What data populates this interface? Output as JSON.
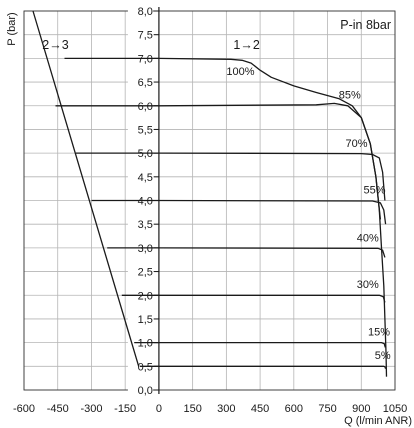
{
  "chart_data": {
    "type": "line",
    "annotation_top_right": "P-in 8bar",
    "xlabel": "Q (l/min ANR)",
    "ylabel": "P (bar)",
    "xlim": [
      -600,
      1050
    ],
    "ylim": [
      0,
      8
    ],
    "grid": true,
    "x_ticks": [
      -600,
      -450,
      -300,
      -150,
      0,
      150,
      300,
      450,
      600,
      750,
      900,
      1050
    ],
    "x_tick_labels": [
      "-600",
      "-450",
      "-300",
      "-150",
      "0",
      "150",
      "300",
      "450",
      "600",
      "750",
      "900",
      "1050"
    ],
    "y_ticks": [
      0,
      0.5,
      1,
      1.5,
      2,
      2.5,
      3,
      3.5,
      4,
      4.5,
      5,
      5.5,
      6,
      6.5,
      7,
      7.5,
      8
    ],
    "y_tick_labels": [
      "0,0",
      "0,5",
      "1,0",
      "1,5",
      "2,0",
      "2,5",
      "3,0",
      "3,5",
      "4,0",
      "4,5",
      "5,0",
      "5,5",
      "6,0",
      "6,5",
      "7,0",
      "7,5",
      "8,0"
    ],
    "region_labels": [
      {
        "text": "1→2",
        "x": 390,
        "y": 7.2
      },
      {
        "text": "2→3",
        "x": -460,
        "y": 7.2
      }
    ],
    "setting_line": {
      "name": "",
      "points": [
        [
          -560,
          8.0
        ],
        [
          -90,
          0.5
        ]
      ]
    },
    "series": [
      {
        "name": "100%",
        "label_at": [
          300,
          6.65
        ],
        "points": [
          [
            -420,
            7.0
          ],
          [
            0,
            7.0
          ],
          [
            320,
            6.98
          ],
          [
            370,
            6.96
          ],
          [
            410,
            6.9
          ],
          [
            450,
            6.75
          ],
          [
            500,
            6.6
          ],
          [
            600,
            6.42
          ],
          [
            700,
            6.28
          ],
          [
            800,
            6.15
          ],
          [
            860,
            6.0
          ],
          [
            900,
            5.75
          ],
          [
            940,
            5.2
          ],
          [
            965,
            4.5
          ],
          [
            980,
            3.8
          ],
          [
            990,
            3.0
          ],
          [
            1000,
            2.2
          ],
          [
            1005,
            1.5
          ],
          [
            1010,
            0.8
          ],
          [
            1012,
            0.28
          ]
        ]
      },
      {
        "name": "85%",
        "label_at": [
          800,
          6.15
        ],
        "points": [
          [
            -460,
            6.0
          ],
          [
            0,
            6.0
          ],
          [
            700,
            6.02
          ],
          [
            780,
            6.05
          ],
          [
            840,
            6.0
          ],
          [
            900,
            5.75
          ],
          [
            940,
            5.2
          ],
          [
            965,
            4.5
          ],
          [
            985,
            3.6
          ]
        ]
      },
      {
        "name": "70%",
        "label_at": [
          830,
          5.13
        ],
        "points": [
          [
            -370,
            5.0
          ],
          [
            0,
            5.0
          ],
          [
            900,
            4.99
          ],
          [
            950,
            4.97
          ],
          [
            980,
            4.9
          ],
          [
            995,
            4.6
          ],
          [
            1005,
            4.0
          ]
        ]
      },
      {
        "name": "55%",
        "label_at": [
          910,
          4.15
        ],
        "points": [
          [
            -300,
            4.0
          ],
          [
            0,
            4.0
          ],
          [
            950,
            3.99
          ],
          [
            985,
            3.95
          ],
          [
            1000,
            3.8
          ],
          [
            1008,
            3.5
          ]
        ]
      },
      {
        "name": "40%",
        "label_at": [
          880,
          3.13
        ],
        "points": [
          [
            -230,
            3.0
          ],
          [
            0,
            3.0
          ],
          [
            975,
            2.99
          ],
          [
            995,
            2.95
          ],
          [
            1005,
            2.8
          ]
        ]
      },
      {
        "name": "30%",
        "label_at": [
          880,
          2.15
        ],
        "points": [
          [
            -165,
            2.0
          ],
          [
            0,
            2.0
          ],
          [
            980,
            2.0
          ],
          [
            998,
            1.97
          ],
          [
            1005,
            1.85
          ]
        ]
      },
      {
        "name": "15%",
        "label_at": [
          930,
          1.15
        ],
        "points": [
          [
            -110,
            1.0
          ],
          [
            0,
            1.0
          ],
          [
            990,
            1.0
          ],
          [
            1002,
            0.98
          ],
          [
            1007,
            0.9
          ]
        ]
      },
      {
        "name": "5%",
        "label_at": [
          960,
          0.65
        ],
        "points": [
          [
            -85,
            0.5
          ],
          [
            0,
            0.5
          ],
          [
            1000,
            0.5
          ],
          [
            1005,
            0.49
          ],
          [
            1008,
            0.45
          ]
        ]
      }
    ]
  }
}
